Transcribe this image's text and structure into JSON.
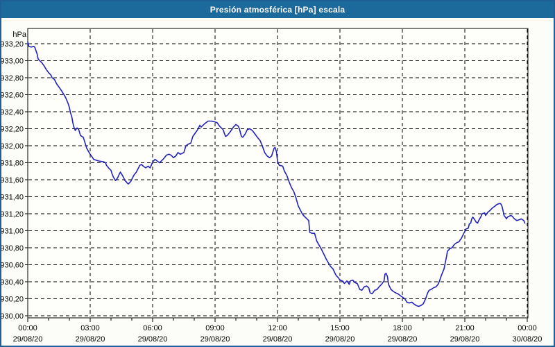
{
  "window": {
    "title": "Presión atmosférica [hPa] escala"
  },
  "chart_data": {
    "type": "line",
    "title": "Presión atmosférica [hPa] escala",
    "y_axis": {
      "label": "hPa",
      "min": 930.0,
      "max": 933.2,
      "step": 0.2,
      "tick_labels": [
        "933,20",
        "933,00",
        "932,80",
        "932,60",
        "932,40",
        "932,20",
        "932,00",
        "931,80",
        "931,60",
        "931,40",
        "931,20",
        "931,00",
        "930,80",
        "930,60",
        "930,40",
        "930,20",
        "930,00"
      ]
    },
    "x_axis": {
      "total_minutes": 1440,
      "minor_tick_minutes": 60,
      "major_tick_minutes": 180,
      "ticks": [
        {
          "time": "00:00",
          "date": "29/08/20"
        },
        {
          "time": "03:00",
          "date": "29/08/20"
        },
        {
          "time": "06:00",
          "date": "29/08/20"
        },
        {
          "time": "09:00",
          "date": "29/08/20"
        },
        {
          "time": "12:00",
          "date": "29/08/20"
        },
        {
          "time": "15:00",
          "date": "29/08/20"
        },
        {
          "time": "18:00",
          "date": "29/08/20"
        },
        {
          "time": "21:00",
          "date": "29/08/20"
        },
        {
          "time": "00:00",
          "date": "30/08/20"
        }
      ]
    },
    "grid": {
      "dashed": true,
      "color": "#000000"
    },
    "legend": {
      "visible": false
    },
    "colors": {
      "titlebar": "#1c6a9c",
      "window_border": "#1d5f96",
      "background": "#fcfdf8",
      "plot_background": "#fefffb",
      "line": "#2121bd",
      "text": "#000000"
    },
    "series": [
      {
        "name": "presion-atmosferica-hpa",
        "color": "#2121bd",
        "points": [
          [
            0,
            933.22
          ],
          [
            3,
            933.17
          ],
          [
            10,
            933.16
          ],
          [
            17,
            933.17
          ],
          [
            20,
            933.16
          ],
          [
            27,
            933.08
          ],
          [
            30,
            933.02
          ],
          [
            37,
            932.99
          ],
          [
            40,
            932.98
          ],
          [
            47,
            932.94
          ],
          [
            53,
            932.9
          ],
          [
            60,
            932.86
          ],
          [
            67,
            932.83
          ],
          [
            70,
            932.8
          ],
          [
            77,
            932.78
          ],
          [
            83,
            932.73
          ],
          [
            90,
            932.69
          ],
          [
            97,
            932.65
          ],
          [
            103,
            932.61
          ],
          [
            110,
            932.56
          ],
          [
            117,
            932.49
          ],
          [
            120,
            932.45
          ],
          [
            123,
            932.39
          ],
          [
            127,
            932.34
          ],
          [
            130,
            932.27
          ],
          [
            133,
            932.22
          ],
          [
            137,
            932.18
          ],
          [
            142,
            932.21
          ],
          [
            147,
            932.19
          ],
          [
            152,
            932.12
          ],
          [
            160,
            932.1
          ],
          [
            164,
            932.05
          ],
          [
            167,
            932.01
          ],
          [
            170,
            931.97
          ],
          [
            177,
            931.92
          ],
          [
            180,
            931.9
          ],
          [
            187,
            931.86
          ],
          [
            190,
            931.84
          ],
          [
            197,
            931.83
          ],
          [
            205,
            931.82
          ],
          [
            220,
            931.81
          ],
          [
            224,
            931.8
          ],
          [
            227,
            931.77
          ],
          [
            233,
            931.74
          ],
          [
            240,
            931.71
          ],
          [
            243,
            931.67
          ],
          [
            247,
            931.63
          ],
          [
            250,
            931.61
          ],
          [
            253,
            931.59
          ],
          [
            257,
            931.61
          ],
          [
            260,
            931.63
          ],
          [
            263,
            931.66
          ],
          [
            267,
            931.69
          ],
          [
            270,
            931.67
          ],
          [
            273,
            931.65
          ],
          [
            277,
            931.62
          ],
          [
            280,
            931.59
          ],
          [
            283,
            931.58
          ],
          [
            287,
            931.56
          ],
          [
            290,
            931.55
          ],
          [
            297,
            931.58
          ],
          [
            303,
            931.63
          ],
          [
            307,
            931.66
          ],
          [
            313,
            931.69
          ],
          [
            323,
            931.77
          ],
          [
            328,
            931.78
          ],
          [
            333,
            931.76
          ],
          [
            340,
            931.74
          ],
          [
            347,
            931.76
          ],
          [
            353,
            931.74
          ],
          [
            360,
            931.81
          ],
          [
            367,
            931.84
          ],
          [
            373,
            931.82
          ],
          [
            380,
            931.8
          ],
          [
            390,
            931.84
          ],
          [
            400,
            931.89
          ],
          [
            407,
            931.9
          ],
          [
            413,
            931.89
          ],
          [
            420,
            931.86
          ],
          [
            427,
            931.88
          ],
          [
            433,
            931.92
          ],
          [
            440,
            931.9
          ],
          [
            450,
            931.92
          ],
          [
            456,
            932.0
          ],
          [
            463,
            932.02
          ],
          [
            470,
            932.03
          ],
          [
            476,
            932.11
          ],
          [
            483,
            932.15
          ],
          [
            490,
            932.19
          ],
          [
            496,
            932.24
          ],
          [
            500,
            932.22
          ],
          [
            510,
            932.26
          ],
          [
            520,
            932.29
          ],
          [
            530,
            932.29
          ],
          [
            540,
            932.28
          ],
          [
            546,
            932.27
          ],
          [
            553,
            932.23
          ],
          [
            563,
            932.19
          ],
          [
            570,
            932.11
          ],
          [
            575,
            932.12
          ],
          [
            583,
            932.16
          ],
          [
            593,
            932.22
          ],
          [
            600,
            932.25
          ],
          [
            607,
            932.23
          ],
          [
            610,
            932.2
          ],
          [
            616,
            932.11
          ],
          [
            620,
            932.1
          ],
          [
            627,
            932.14
          ],
          [
            633,
            932.19
          ],
          [
            640,
            932.2
          ],
          [
            647,
            932.18
          ],
          [
            653,
            932.15
          ],
          [
            660,
            932.11
          ],
          [
            670,
            932.06
          ],
          [
            677,
            931.99
          ],
          [
            683,
            931.92
          ],
          [
            690,
            931.88
          ],
          [
            697,
            931.86
          ],
          [
            703,
            931.88
          ],
          [
            710,
            931.97
          ],
          [
            713,
            931.98
          ],
          [
            717,
            931.93
          ],
          [
            720,
            931.82
          ],
          [
            725,
            931.77
          ],
          [
            735,
            931.76
          ],
          [
            740,
            931.7
          ],
          [
            747,
            931.65
          ],
          [
            753,
            931.58
          ],
          [
            760,
            931.51
          ],
          [
            767,
            931.46
          ],
          [
            773,
            931.39
          ],
          [
            780,
            931.29
          ],
          [
            785,
            931.25
          ],
          [
            790,
            931.21
          ],
          [
            795,
            931.18
          ],
          [
            800,
            931.16
          ],
          [
            805,
            931.14
          ],
          [
            810,
            931.12
          ],
          [
            813,
            930.98
          ],
          [
            820,
            930.97
          ],
          [
            827,
            930.97
          ],
          [
            833,
            930.88
          ],
          [
            840,
            930.83
          ],
          [
            847,
            930.78
          ],
          [
            853,
            930.73
          ],
          [
            860,
            930.67
          ],
          [
            867,
            930.62
          ],
          [
            873,
            930.58
          ],
          [
            880,
            930.55
          ],
          [
            887,
            930.49
          ],
          [
            890,
            930.47
          ],
          [
            895,
            930.45
          ],
          [
            900,
            930.42
          ],
          [
            907,
            930.41
          ],
          [
            913,
            930.38
          ],
          [
            920,
            930.41
          ],
          [
            927,
            930.37
          ],
          [
            930,
            930.41
          ],
          [
            937,
            930.42
          ],
          [
            943,
            930.39
          ],
          [
            950,
            930.38
          ],
          [
            957,
            930.31
          ],
          [
            963,
            930.3
          ],
          [
            970,
            930.34
          ],
          [
            977,
            930.35
          ],
          [
            983,
            930.33
          ],
          [
            987,
            930.27
          ],
          [
            993,
            930.26
          ],
          [
            1000,
            930.3
          ],
          [
            1007,
            930.31
          ],
          [
            1013,
            930.34
          ],
          [
            1020,
            930.37
          ],
          [
            1027,
            930.41
          ],
          [
            1030,
            930.49
          ],
          [
            1033,
            930.5
          ],
          [
            1037,
            930.46
          ],
          [
            1040,
            930.37
          ],
          [
            1047,
            930.31
          ],
          [
            1053,
            930.29
          ],
          [
            1060,
            930.27
          ],
          [
            1067,
            930.26
          ],
          [
            1073,
            930.24
          ],
          [
            1080,
            930.22
          ],
          [
            1087,
            930.2
          ],
          [
            1093,
            930.16
          ],
          [
            1100,
            930.15
          ],
          [
            1107,
            930.16
          ],
          [
            1113,
            930.14
          ],
          [
            1120,
            930.12
          ],
          [
            1127,
            930.11
          ],
          [
            1133,
            930.12
          ],
          [
            1140,
            930.14
          ],
          [
            1147,
            930.2
          ],
          [
            1153,
            930.27
          ],
          [
            1157,
            930.3
          ],
          [
            1163,
            930.31
          ],
          [
            1170,
            930.33
          ],
          [
            1177,
            930.34
          ],
          [
            1183,
            930.37
          ],
          [
            1187,
            930.41
          ],
          [
            1193,
            930.48
          ],
          [
            1200,
            930.55
          ],
          [
            1207,
            930.69
          ],
          [
            1210,
            930.76
          ],
          [
            1217,
            930.79
          ],
          [
            1223,
            930.8
          ],
          [
            1230,
            930.84
          ],
          [
            1237,
            930.86
          ],
          [
            1243,
            930.87
          ],
          [
            1250,
            930.91
          ],
          [
            1257,
            930.97
          ],
          [
            1260,
            930.99
          ],
          [
            1263,
            931.02
          ],
          [
            1270,
            931.03
          ],
          [
            1273,
            931.08
          ],
          [
            1277,
            931.09
          ],
          [
            1280,
            931.14
          ],
          [
            1283,
            931.16
          ],
          [
            1287,
            931.14
          ],
          [
            1293,
            931.1
          ],
          [
            1297,
            931.09
          ],
          [
            1300,
            931.12
          ],
          [
            1307,
            931.17
          ],
          [
            1310,
            931.2
          ],
          [
            1317,
            931.21
          ],
          [
            1320,
            931.18
          ],
          [
            1323,
            931.2
          ],
          [
            1327,
            931.22
          ],
          [
            1333,
            931.24
          ],
          [
            1340,
            931.27
          ],
          [
            1347,
            931.29
          ],
          [
            1353,
            931.31
          ],
          [
            1360,
            931.32
          ],
          [
            1363,
            931.32
          ],
          [
            1367,
            931.29
          ],
          [
            1370,
            931.24
          ],
          [
            1373,
            931.18
          ],
          [
            1377,
            931.16
          ],
          [
            1380,
            931.14
          ],
          [
            1383,
            931.16
          ],
          [
            1387,
            931.17
          ],
          [
            1393,
            931.18
          ],
          [
            1397,
            931.17
          ],
          [
            1403,
            931.14
          ],
          [
            1410,
            931.12
          ],
          [
            1417,
            931.13
          ],
          [
            1423,
            931.14
          ],
          [
            1430,
            931.12
          ],
          [
            1433,
            931.09
          ]
        ]
      }
    ]
  }
}
